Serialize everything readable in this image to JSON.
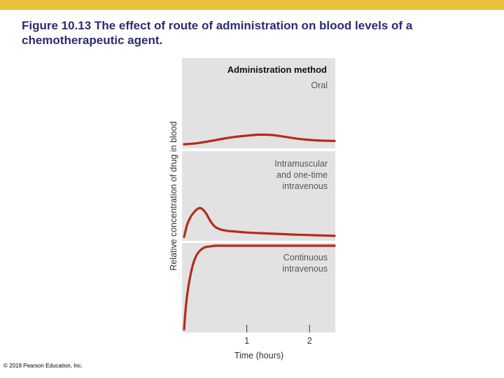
{
  "slide": {
    "title_line1": "Figure 10.13  The effect of route of administration on blood levels of a",
    "title_line2": "chemotherapeutic agent.",
    "copyright": "© 2018 Pearson Education, Inc.",
    "accent_color": "#e8c03a",
    "title_color": "#2b2b73"
  },
  "chart_data": {
    "type": "line",
    "legend_title": "Administration method",
    "xlabel": "Time (hours)",
    "ylabel": "Relative concentration of drug in blood",
    "x_ticks": [
      "1",
      "2"
    ],
    "xlim": [
      0,
      2.4
    ],
    "ylim": [
      0,
      1
    ],
    "line_color": "#b52a1c",
    "panel_color": "#e2e2e2",
    "series": [
      {
        "name": "Oral",
        "x": [
          0,
          0.2,
          0.4,
          0.6,
          0.8,
          1.0,
          1.2,
          1.4,
          1.6,
          1.8,
          2.0,
          2.2,
          2.4
        ],
        "y": [
          0.02,
          0.05,
          0.11,
          0.18,
          0.24,
          0.28,
          0.31,
          0.3,
          0.25,
          0.19,
          0.15,
          0.13,
          0.12
        ]
      },
      {
        "name": "Intramuscular and one-time intravenous",
        "x": [
          0,
          0.05,
          0.1,
          0.15,
          0.2,
          0.25,
          0.3,
          0.35,
          0.4,
          0.45,
          0.5,
          0.55,
          0.6,
          0.7,
          0.8,
          1.0,
          1.2,
          1.5,
          1.8,
          2.1,
          2.4
        ],
        "y": [
          0.02,
          0.25,
          0.38,
          0.46,
          0.52,
          0.55,
          0.52,
          0.45,
          0.35,
          0.26,
          0.2,
          0.17,
          0.15,
          0.13,
          0.12,
          0.1,
          0.09,
          0.075,
          0.06,
          0.05,
          0.04
        ]
      },
      {
        "name": "Continuous intravenous",
        "x": [
          0,
          0.03,
          0.06,
          0.1,
          0.15,
          0.2,
          0.25,
          0.3,
          0.35,
          0.4,
          0.5,
          0.6,
          0.8,
          1.2,
          1.8,
          2.4
        ],
        "y": [
          0.02,
          0.3,
          0.48,
          0.65,
          0.8,
          0.89,
          0.94,
          0.97,
          0.985,
          0.99,
          1.0,
          1.0,
          1.0,
          1.0,
          1.0,
          1.0
        ]
      }
    ],
    "panel_labels": [
      [
        "Oral"
      ],
      [
        "Intramuscular",
        "and one-time",
        "intravenous"
      ],
      [
        "Continuous",
        "intravenous"
      ]
    ]
  }
}
